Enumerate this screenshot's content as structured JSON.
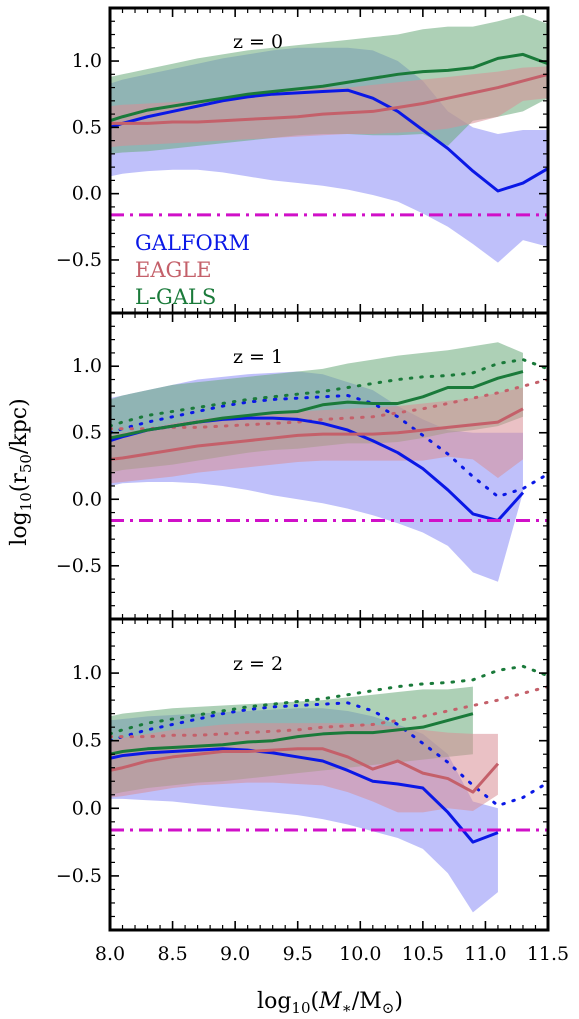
{
  "y_axis_label": "log10(r50/kpc)",
  "x_axis_label": "log10(M*/M⊙)",
  "colors": {
    "GALFORM": "#0a18e6",
    "EAGLE": "#c4606a",
    "L-GALS": "#1a7a3a",
    "GALFORM_band": "#8a8cf5",
    "EAGLE_band": "#d98e96",
    "L-GALS_band": "#6aaa7a",
    "reference": "#d010c8"
  },
  "legend": [
    "GALFORM",
    "EAGLE",
    "L-GALS"
  ],
  "chart_data": [
    {
      "type": "line",
      "panel_label": "z = 0",
      "xlim": [
        8.0,
        11.5
      ],
      "ylim": [
        -0.9,
        1.4
      ],
      "xticks": [
        "8.0",
        "8.5",
        "9.0",
        "9.5",
        "10.0",
        "10.5",
        "11.0",
        "11.5"
      ],
      "yticks": [
        "−0.5",
        "0.0",
        "0.5",
        "1.0"
      ],
      "ytick_values": [
        -0.5,
        0.0,
        0.5,
        1.0
      ],
      "reference_line": -0.16,
      "x": [
        8.0,
        8.1,
        8.3,
        8.5,
        8.7,
        8.9,
        9.1,
        9.3,
        9.5,
        9.7,
        9.9,
        10.1,
        10.3,
        10.5,
        10.7,
        10.9,
        11.1,
        11.3,
        11.5
      ],
      "series": [
        {
          "name": "GALFORM",
          "median": [
            0.5,
            0.53,
            0.58,
            0.62,
            0.66,
            0.7,
            0.73,
            0.75,
            0.76,
            0.77,
            0.78,
            0.72,
            0.62,
            0.48,
            0.34,
            0.17,
            0.02,
            0.08,
            0.19
          ],
          "lower": [
            0.13,
            0.15,
            0.17,
            0.18,
            0.18,
            0.16,
            0.13,
            0.1,
            0.08,
            0.06,
            0.03,
            -0.01,
            -0.06,
            -0.15,
            -0.25,
            -0.38,
            -0.52,
            -0.35,
            -0.4
          ],
          "upper": [
            0.83,
            0.86,
            0.9,
            0.94,
            0.98,
            1.02,
            1.05,
            1.08,
            1.1,
            1.1,
            1.1,
            1.08,
            1.0,
            0.85,
            0.62,
            0.5,
            0.45,
            0.48,
            0.48
          ]
        },
        {
          "name": "EAGLE",
          "median": [
            0.53,
            0.53,
            0.53,
            0.54,
            0.54,
            0.55,
            0.56,
            0.57,
            0.58,
            0.6,
            0.61,
            0.62,
            0.65,
            0.68,
            0.72,
            0.76,
            0.8,
            0.85,
            0.9
          ],
          "lower": [
            0.35,
            0.36,
            0.37,
            0.38,
            0.39,
            0.4,
            0.41,
            0.42,
            0.43,
            0.44,
            0.45,
            0.45,
            0.46,
            0.47,
            0.49,
            0.53,
            0.58,
            0.7,
            0.72
          ],
          "upper": [
            0.66,
            0.67,
            0.68,
            0.69,
            0.7,
            0.72,
            0.74,
            0.76,
            0.78,
            0.8,
            0.8,
            0.82,
            0.84,
            0.86,
            0.88,
            0.9,
            0.92,
            0.95,
            0.96
          ]
        },
        {
          "name": "L-GALS",
          "median": [
            0.55,
            0.58,
            0.63,
            0.66,
            0.69,
            0.72,
            0.75,
            0.77,
            0.79,
            0.81,
            0.84,
            0.87,
            0.9,
            0.92,
            0.93,
            0.95,
            1.02,
            1.05,
            0.98
          ],
          "lower": [
            0.3,
            0.31,
            0.32,
            0.34,
            0.36,
            0.38,
            0.4,
            0.42,
            0.44,
            0.45,
            0.45,
            0.44,
            0.44,
            0.45,
            0.36,
            0.55,
            0.58,
            0.62,
            0.72
          ],
          "upper": [
            0.88,
            0.9,
            0.94,
            0.98,
            1.02,
            1.05,
            1.08,
            1.1,
            1.12,
            1.14,
            1.16,
            1.18,
            1.2,
            1.24,
            1.26,
            1.26,
            1.3,
            1.35,
            1.28
          ]
        }
      ]
    },
    {
      "type": "line",
      "panel_label": "z = 1",
      "xlim": [
        8.0,
        11.5
      ],
      "ylim": [
        -0.9,
        1.4
      ],
      "xticks": [
        "8.0",
        "8.5",
        "9.0",
        "9.5",
        "10.0",
        "10.5",
        "11.0",
        "11.5"
      ],
      "yticks": [
        "−0.5",
        "0.0",
        "0.5",
        "1.0"
      ],
      "ytick_values": [
        -0.5,
        0.0,
        0.5,
        1.0
      ],
      "reference_line": -0.16,
      "x": [
        8.0,
        8.1,
        8.3,
        8.5,
        8.7,
        8.9,
        9.1,
        9.3,
        9.5,
        9.7,
        9.9,
        10.1,
        10.3,
        10.5,
        10.7,
        10.9,
        11.1,
        11.3
      ],
      "series": [
        {
          "name": "GALFORM",
          "median": [
            0.44,
            0.47,
            0.52,
            0.55,
            0.58,
            0.6,
            0.61,
            0.61,
            0.6,
            0.57,
            0.52,
            0.44,
            0.35,
            0.23,
            0.07,
            -0.11,
            -0.16,
            0.05
          ],
          "lower": [
            0.1,
            0.12,
            0.13,
            0.13,
            0.12,
            0.1,
            0.07,
            0.03,
            0.0,
            -0.03,
            -0.07,
            -0.12,
            -0.18,
            -0.25,
            -0.35,
            -0.55,
            -0.62,
            0.05
          ],
          "upper": [
            0.76,
            0.78,
            0.82,
            0.86,
            0.9,
            0.92,
            0.94,
            0.95,
            0.96,
            0.94,
            0.88,
            0.82,
            0.7,
            0.6,
            0.52,
            0.5,
            0.5,
            0.5
          ]
        },
        {
          "name": "EAGLE",
          "median": [
            0.3,
            0.31,
            0.34,
            0.37,
            0.4,
            0.42,
            0.44,
            0.46,
            0.48,
            0.49,
            0.49,
            0.49,
            0.5,
            0.52,
            0.54,
            0.56,
            0.58,
            0.68
          ],
          "lower": [
            0.12,
            0.13,
            0.15,
            0.17,
            0.2,
            0.22,
            0.24,
            0.26,
            0.28,
            0.29,
            0.29,
            0.29,
            0.29,
            0.29,
            0.32,
            0.3,
            0.16,
            0.3
          ],
          "upper": [
            0.48,
            0.5,
            0.53,
            0.57,
            0.6,
            0.62,
            0.64,
            0.65,
            0.66,
            0.67,
            0.68,
            0.69,
            0.7,
            0.72,
            0.74,
            0.76,
            0.8,
            0.84
          ]
        },
        {
          "name": "L-GALS",
          "median": [
            0.46,
            0.48,
            0.52,
            0.55,
            0.58,
            0.61,
            0.63,
            0.65,
            0.66,
            0.71,
            0.73,
            0.72,
            0.72,
            0.77,
            0.84,
            0.84,
            0.91,
            0.96
          ],
          "lower": [
            0.2,
            0.22,
            0.24,
            0.26,
            0.29,
            0.32,
            0.35,
            0.37,
            0.38,
            0.4,
            0.42,
            0.42,
            0.43,
            0.46,
            0.5,
            0.52,
            0.55,
            0.62
          ],
          "upper": [
            0.75,
            0.78,
            0.82,
            0.86,
            0.88,
            0.9,
            0.92,
            0.94,
            0.96,
            0.98,
            1.02,
            1.05,
            1.08,
            1.1,
            1.12,
            1.15,
            1.18,
            1.1
          ]
        }
      ]
    },
    {
      "type": "line",
      "panel_label": "z = 2",
      "xlim": [
        8.0,
        11.5
      ],
      "ylim": [
        -0.9,
        1.4
      ],
      "xticks": [
        "8.0",
        "8.5",
        "9.0",
        "9.5",
        "10.0",
        "10.5",
        "11.0",
        "11.5"
      ],
      "xtick_values": [
        8.0,
        8.5,
        9.0,
        9.5,
        10.0,
        10.5,
        11.0,
        11.5
      ],
      "yticks": [
        "−0.5",
        "0.0",
        "0.5",
        "1.0"
      ],
      "ytick_values": [
        -0.5,
        0.0,
        0.5,
        1.0
      ],
      "reference_line": -0.16,
      "x": [
        8.0,
        8.1,
        8.3,
        8.5,
        8.7,
        8.9,
        9.1,
        9.3,
        9.5,
        9.7,
        9.9,
        10.1,
        10.3,
        10.5,
        10.7,
        10.9,
        11.1
      ],
      "series": [
        {
          "name": "GALFORM",
          "median": [
            0.37,
            0.39,
            0.41,
            0.42,
            0.43,
            0.44,
            0.43,
            0.41,
            0.38,
            0.35,
            0.28,
            0.2,
            0.18,
            0.15,
            -0.03,
            -0.25,
            -0.18
          ],
          "lower": [
            0.07,
            0.07,
            0.06,
            0.05,
            0.03,
            0.01,
            -0.01,
            -0.03,
            -0.05,
            -0.08,
            -0.12,
            -0.17,
            -0.22,
            -0.3,
            -0.48,
            -0.77,
            -0.62
          ],
          "upper": [
            0.65,
            0.66,
            0.68,
            0.69,
            0.7,
            0.71,
            0.72,
            0.73,
            0.74,
            0.74,
            0.72,
            0.68,
            0.62,
            0.55,
            0.4,
            0.05,
            0.0
          ]
        },
        {
          "name": "EAGLE",
          "median": [
            0.28,
            0.3,
            0.35,
            0.38,
            0.4,
            0.42,
            0.42,
            0.43,
            0.44,
            0.44,
            0.38,
            0.29,
            0.35,
            0.26,
            0.22,
            0.12,
            0.33
          ],
          "lower": [
            0.08,
            0.09,
            0.12,
            0.15,
            0.17,
            0.18,
            0.19,
            0.19,
            0.18,
            0.17,
            0.12,
            0.05,
            -0.03,
            -0.03,
            0.0,
            -0.02,
            0.1
          ],
          "upper": [
            0.5,
            0.52,
            0.55,
            0.58,
            0.6,
            0.62,
            0.63,
            0.63,
            0.63,
            0.63,
            0.63,
            0.62,
            0.6,
            0.58,
            0.56,
            0.55,
            0.55
          ]
        },
        {
          "name": "L-GALS",
          "median": [
            0.4,
            0.42,
            0.44,
            0.45,
            0.46,
            0.47,
            0.49,
            0.5,
            0.53,
            0.55,
            0.56,
            0.56,
            0.58,
            0.6,
            0.65,
            0.7
          ],
          "lower": [
            0.1,
            0.12,
            0.15,
            0.17,
            0.19,
            0.2,
            0.22,
            0.24,
            0.26,
            0.28,
            0.3,
            0.32,
            0.34,
            0.36,
            0.38,
            0.4
          ],
          "upper": [
            0.68,
            0.7,
            0.72,
            0.74,
            0.75,
            0.76,
            0.77,
            0.78,
            0.79,
            0.8,
            0.82,
            0.84,
            0.86,
            0.88,
            0.88,
            0.9
          ]
        }
      ]
    }
  ],
  "z0_reference_curves": {
    "x": [
      8.0,
      8.1,
      8.3,
      8.5,
      8.7,
      8.9,
      9.1,
      9.3,
      9.5,
      9.7,
      9.9,
      10.1,
      10.3,
      10.5,
      10.7,
      10.9,
      11.1,
      11.3,
      11.5
    ]
  }
}
